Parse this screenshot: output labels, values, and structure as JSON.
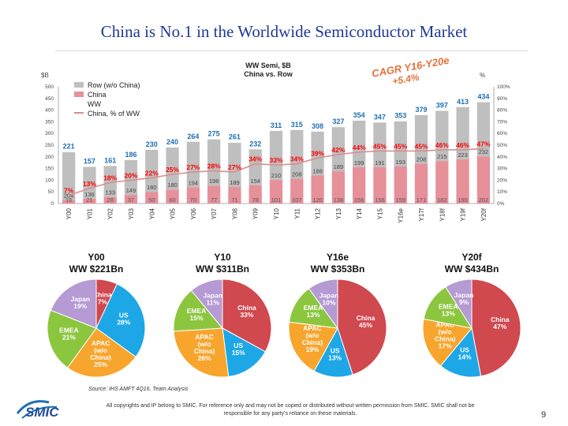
{
  "title": "China is No.1 in the Worldwide Semiconductor Market",
  "source": "Source: IHS AMFT 4Q16, Team Analysis",
  "copyright": "All copyrights and IP belong to SMIC. For reference only and may not be copied or distributed without written permission from SMIC. SMIC shall not be responsible for any party's reliance on these materials.",
  "page_number": "9",
  "logo_text": "SMIC",
  "cagr": {
    "label": "CAGR Y16-Y20e",
    "rate": "+5.4%"
  },
  "colors": {
    "row": "#bfbfbf",
    "china": "#e6909a",
    "ww_label": "#1f6fb5",
    "china_pct": "#ff0000",
    "title": "#1f3a93",
    "japan": "#b59ad3",
    "china_pie": "#d0494f",
    "us": "#1ea7e6",
    "apac": "#f7a52d",
    "emea": "#8cc63f"
  },
  "chart_data": [
    {
      "type": "bar",
      "title": "WW Semi, $B\nChina vs. Row",
      "ylabel_left": "$B",
      "ylabel_right": "%",
      "ylim_left": [
        0,
        500
      ],
      "ylim_right": [
        0,
        100
      ],
      "left_ticks": [
        "0",
        "50",
        "100",
        "150",
        "200",
        "250",
        "300",
        "350",
        "400",
        "450",
        "500"
      ],
      "right_ticks": [
        "0%",
        "10%",
        "20%",
        "30%",
        "40%",
        "50%",
        "60%",
        "70%",
        "80%",
        "90%",
        "100%"
      ],
      "categories": [
        "Y00",
        "Y01",
        "Y02",
        "Y03",
        "Y04",
        "Y05",
        "Y06",
        "Y07",
        "Y08",
        "Y09",
        "Y10",
        "Y11",
        "Y12",
        "Y13",
        "Y14",
        "Y15",
        "Y16e",
        "Y17f",
        "Y18f",
        "Y19f",
        "Y20f"
      ],
      "series": [
        {
          "name": "Row (w/o China)",
          "values": [
            204,
            136,
            133,
            149,
            180,
            180,
            194,
            198,
            189,
            154,
            210,
            208,
            188,
            189,
            199,
            191,
            193,
            208,
            215,
            223,
            232
          ]
        },
        {
          "name": "China",
          "values": [
            16,
            21,
            28,
            37,
            50,
            60,
            70,
            77,
            71,
            78,
            101,
            107,
            120,
            138,
            156,
            156,
            159,
            171,
            182,
            190,
            202
          ]
        },
        {
          "name": "WW",
          "values": [
            221,
            157,
            161,
            186,
            230,
            240,
            264,
            275,
            261,
            232,
            311,
            315,
            308,
            327,
            354,
            347,
            353,
            379,
            397,
            413,
            434
          ]
        },
        {
          "name": "China, % of WW",
          "values": [
            7,
            13,
            18,
            20,
            22,
            25,
            27,
            28,
            27,
            34,
            33,
            34,
            39,
            42,
            44,
            45,
            45,
            45,
            46,
            46,
            47
          ]
        }
      ]
    },
    {
      "type": "pie",
      "title": "Y00\nWW $221Bn",
      "slices": [
        {
          "label": "China",
          "value": 7
        },
        {
          "label": "US",
          "value": 28
        },
        {
          "label": "APAC (w/o China)",
          "value": 25
        },
        {
          "label": "EMEA",
          "value": 21
        },
        {
          "label": "Japan",
          "value": 19
        }
      ]
    },
    {
      "type": "pie",
      "title": "Y10\nWW $311Bn",
      "slices": [
        {
          "label": "China",
          "value": 33
        },
        {
          "label": "US",
          "value": 15
        },
        {
          "label": "APAC (w/o China)",
          "value": 26
        },
        {
          "label": "EMEA",
          "value": 15
        },
        {
          "label": "Japan",
          "value": 11
        }
      ]
    },
    {
      "type": "pie",
      "title": "Y16e\nWW $353Bn",
      "slices": [
        {
          "label": "China",
          "value": 45
        },
        {
          "label": "US",
          "value": 13
        },
        {
          "label": "APAC (w/o China)",
          "value": 19
        },
        {
          "label": "EMEA",
          "value": 13
        },
        {
          "label": "Japan",
          "value": 10
        }
      ]
    },
    {
      "type": "pie",
      "title": "Y20f\nWW $434Bn",
      "slices": [
        {
          "label": "China",
          "value": 47
        },
        {
          "label": "US",
          "value": 14
        },
        {
          "label": "APAC (w/o China)",
          "value": 17
        },
        {
          "label": "EMEA",
          "value": 13
        },
        {
          "label": "Japan",
          "value": 9
        }
      ]
    }
  ]
}
